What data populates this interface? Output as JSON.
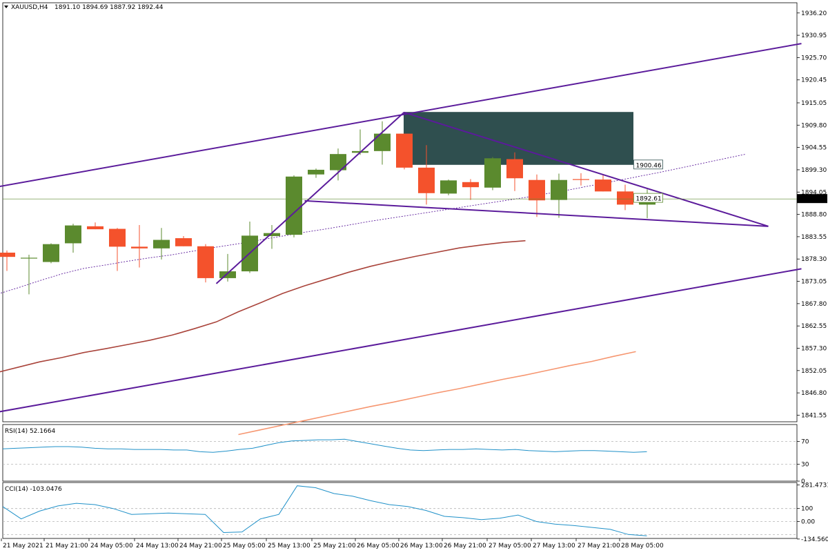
{
  "header": {
    "symbol": "XAUUSD,H4",
    "ohlc": "1891.10 1894.69 1887.92 1892.44"
  },
  "colors": {
    "bull": "#5b8a2e",
    "bear": "#f4522c",
    "channel": "#5b1b9b",
    "ma_slow": "#a9433a",
    "ma_long": "#f69670",
    "rect": "#2f4f4f",
    "indicator": "#1e90c8",
    "grid_dash": "#b4b4b4"
  },
  "chart_data": [
    {
      "type": "candlestick",
      "title": "XAUUSD,H4",
      "current_price_label": "1892.44",
      "ylim": [
        1840.0,
        1938.6
      ],
      "y_ticks": [
        "1936.20",
        "1930.95",
        "1925.70",
        "1920.45",
        "1915.05",
        "1909.80",
        "1904.55",
        "1899.30",
        "1894.05",
        "1888.80",
        "1883.55",
        "1878.30",
        "1873.05",
        "1867.80",
        "1862.55",
        "1857.30",
        "1852.05",
        "1846.80",
        "1841.55"
      ],
      "x_ticks": [
        "21 May 2021",
        "21 May 21:00",
        "24 May 05:00",
        "24 May 13:00",
        "24 May 21:00",
        "25 May 05:00",
        "25 May 13:00",
        "25 May 21:00",
        "26 May 05:00",
        "26 May 13:00",
        "26 May 21:00",
        "27 May 05:00",
        "27 May 13:00",
        "27 May 21:00",
        "28 May 05:00"
      ],
      "candles": [
        {
          "o": 1879.8,
          "h": 1880.3,
          "l": 1875.5,
          "c": 1878.8
        },
        {
          "o": 1878.5,
          "h": 1879.3,
          "l": 1870.0,
          "c": 1878.6
        },
        {
          "o": 1877.6,
          "h": 1882.0,
          "l": 1877.3,
          "c": 1881.8
        },
        {
          "o": 1882.0,
          "h": 1886.6,
          "l": 1879.8,
          "c": 1886.2
        },
        {
          "o": 1886.0,
          "h": 1886.9,
          "l": 1885.3,
          "c": 1885.3
        },
        {
          "o": 1885.4,
          "h": 1885.6,
          "l": 1875.5,
          "c": 1881.2
        },
        {
          "o": 1881.2,
          "h": 1886.3,
          "l": 1876.3,
          "c": 1880.8
        },
        {
          "o": 1880.8,
          "h": 1885.6,
          "l": 1878.2,
          "c": 1882.8
        },
        {
          "o": 1883.2,
          "h": 1883.7,
          "l": 1881.3,
          "c": 1881.3
        },
        {
          "o": 1881.3,
          "h": 1881.8,
          "l": 1872.8,
          "c": 1873.8
        },
        {
          "o": 1873.8,
          "h": 1879.5,
          "l": 1873.0,
          "c": 1875.4
        },
        {
          "o": 1875.4,
          "h": 1887.1,
          "l": 1875.0,
          "c": 1883.8
        },
        {
          "o": 1883.7,
          "h": 1886.3,
          "l": 1880.7,
          "c": 1884.4
        },
        {
          "o": 1884.0,
          "h": 1898.0,
          "l": 1883.4,
          "c": 1897.7
        },
        {
          "o": 1898.2,
          "h": 1899.6,
          "l": 1897.4,
          "c": 1899.3
        },
        {
          "o": 1899.2,
          "h": 1904.3,
          "l": 1896.8,
          "c": 1903.0
        },
        {
          "o": 1903.3,
          "h": 1908.8,
          "l": 1902.8,
          "c": 1903.7
        },
        {
          "o": 1903.7,
          "h": 1910.7,
          "l": 1900.5,
          "c": 1907.8
        },
        {
          "o": 1907.8,
          "h": 1907.8,
          "l": 1899.4,
          "c": 1899.8
        },
        {
          "o": 1899.8,
          "h": 1905.1,
          "l": 1891.1,
          "c": 1893.8
        },
        {
          "o": 1893.7,
          "h": 1897.0,
          "l": 1893.3,
          "c": 1896.8
        },
        {
          "o": 1896.4,
          "h": 1897.1,
          "l": 1892.2,
          "c": 1895.2
        },
        {
          "o": 1895.1,
          "h": 1902.3,
          "l": 1894.5,
          "c": 1902.0
        },
        {
          "o": 1901.8,
          "h": 1903.4,
          "l": 1894.3,
          "c": 1897.3
        },
        {
          "o": 1896.9,
          "h": 1898.2,
          "l": 1888.2,
          "c": 1892.1
        },
        {
          "o": 1892.2,
          "h": 1898.4,
          "l": 1888.0,
          "c": 1896.9
        },
        {
          "o": 1897.1,
          "h": 1898.5,
          "l": 1895.6,
          "c": 1897.0
        },
        {
          "o": 1897.0,
          "h": 1898.0,
          "l": 1894.2,
          "c": 1894.2
        },
        {
          "o": 1894.2,
          "h": 1895.8,
          "l": 1889.8,
          "c": 1891.1
        },
        {
          "o": 1891.1,
          "h": 1894.7,
          "l": 1887.9,
          "c": 1892.4
        }
      ],
      "series": [
        {
          "values": [
            1869.9,
            1871.5,
            1873.2,
            1874.8,
            1876.1,
            1876.9,
            1877.8,
            1878.6,
            1879.3,
            1880.2,
            1881.1,
            1881.9,
            1882.8,
            1883.7,
            1884.6,
            1885.4,
            1886.3,
            1887.2,
            1888.0,
            1888.8,
            1889.6,
            1890.4,
            1891.2,
            1892.0,
            1892.8,
            1893.7,
            1894.6,
            1895.6,
            1896.6,
            1897.6,
            1898.6,
            1899.7,
            1900.8,
            1901.9,
            1903.0
          ]
        },
        {
          "values": [
            1851.5,
            1852.8,
            1854.1,
            1855.1,
            1856.3,
            1857.2,
            1858.2,
            1859.2,
            1860.4,
            1861.9,
            1863.5,
            1865.9,
            1868.0,
            1870.2,
            1872.0,
            1873.6,
            1875.2,
            1876.6,
            1877.8,
            1878.9,
            1879.9,
            1880.9,
            1881.6,
            1882.2,
            1882.6
          ]
        },
        {
          "values": [
            1837.0,
            1838.1,
            1839.2,
            1840.3,
            1841.4,
            1842.5,
            1843.6,
            1844.6,
            1845.7,
            1846.8,
            1847.8,
            1848.9,
            1850.0,
            1851.0,
            1852.1,
            1853.2,
            1854.2,
            1855.4,
            1856.5
          ]
        }
      ],
      "price_tags": [
        "1900.46",
        "1892.61"
      ],
      "current_price": 1892.44,
      "rectangle": {
        "x1": 18,
        "x2": 28,
        "y1": 1912.9,
        "y2": 1900.46
      },
      "trendlines": [
        {
          "x1": -0.5,
          "y1": 1895.2,
          "x2": 36,
          "y2": 1929.0
        },
        {
          "x1": -0.5,
          "y1": 1842.2,
          "x2": 36,
          "y2": 1876.0
        },
        {
          "x1": 18,
          "y1": 1912.8,
          "x2": 34.5,
          "y2": 1886.0
        },
        {
          "x1": 13.5,
          "y1": 1892.0,
          "x2": 34.5,
          "y2": 1886.0
        },
        {
          "x1": 9.5,
          "y1": 1872.5,
          "x2": 18,
          "y2": 1912.8
        }
      ]
    },
    {
      "type": "line",
      "title": "RSI(14) 52.1664",
      "ylim": [
        0,
        100
      ],
      "y_ticks": [
        "70",
        "30",
        "0"
      ],
      "levels": [
        70,
        30
      ],
      "series": [
        {
          "values": [
            57,
            58,
            59,
            60,
            61,
            61,
            60,
            58,
            57,
            57,
            56,
            56,
            56,
            55,
            55,
            52,
            51,
            53,
            56,
            58,
            63,
            68,
            71,
            72,
            73,
            73,
            74,
            70,
            66,
            62,
            58,
            55,
            54,
            55,
            56,
            56,
            57,
            56,
            55,
            56,
            54,
            53,
            52,
            53,
            54,
            54,
            53,
            52,
            51,
            52
          ]
        }
      ]
    },
    {
      "type": "line",
      "title": "CCI(14) -103.0476",
      "ylim": [
        -130,
        300
      ],
      "y_ticks": [
        "281.4731",
        "100",
        "0.00",
        "-134.5604"
      ],
      "levels": [
        100,
        0,
        -100
      ],
      "series": [
        {
          "values": [
            115,
            20,
            80,
            120,
            140,
            130,
            100,
            55,
            60,
            65,
            60,
            55,
            -85,
            -80,
            20,
            55,
            275,
            260,
            215,
            195,
            160,
            130,
            115,
            85,
            40,
            30,
            15,
            25,
            50,
            0,
            -20,
            -30,
            -45,
            -60,
            -100,
            -110
          ]
        }
      ]
    }
  ]
}
